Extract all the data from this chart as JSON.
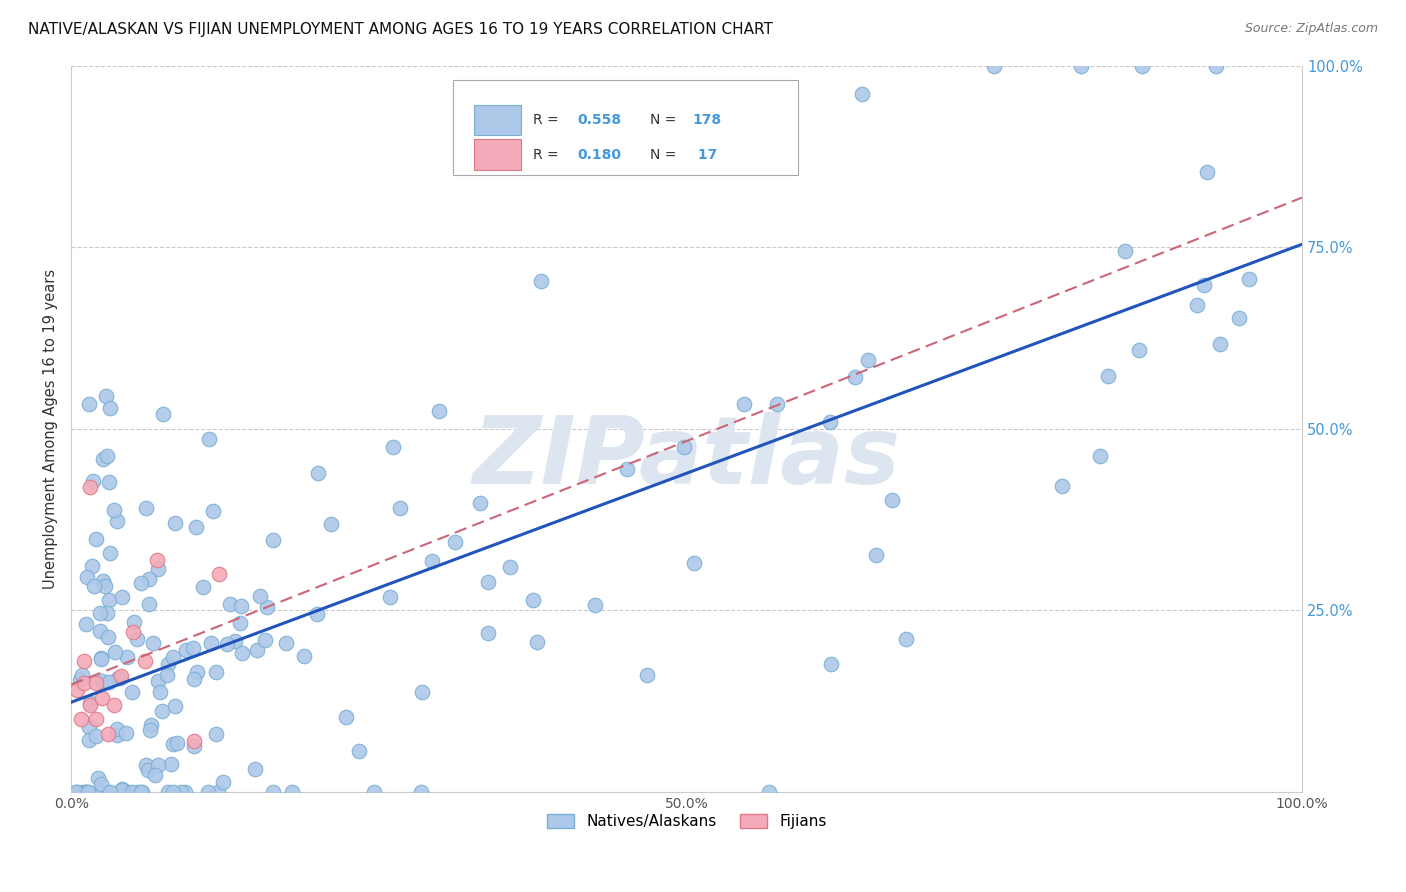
{
  "title": "NATIVE/ALASKAN VS FIJIAN UNEMPLOYMENT AMONG AGES 16 TO 19 YEARS CORRELATION CHART",
  "source": "Source: ZipAtlas.com",
  "ylabel": "Unemployment Among Ages 16 to 19 years",
  "xlim": [
    0.0,
    1.0
  ],
  "ylim": [
    0.0,
    1.0
  ],
  "xticks": [
    0.0,
    0.25,
    0.5,
    0.75,
    1.0
  ],
  "xticklabels": [
    "0.0%",
    "",
    "50.0%",
    "",
    "100.0%"
  ],
  "yticks": [
    0.0,
    0.25,
    0.5,
    0.75,
    1.0
  ],
  "right_yticklabels": [
    "",
    "25.0%",
    "50.0%",
    "75.0%",
    "100.0%"
  ],
  "native_color": "#adc8e8",
  "native_edge": "#7aafd4",
  "fijian_color": "#f4aab8",
  "fijian_edge": "#e07888",
  "native_R": 0.558,
  "native_N": 178,
  "fijian_R": 0.18,
  "fijian_N": 17,
  "legend_label_native": "Natives/Alaskans",
  "legend_label_fijian": "Fijians",
  "background_color": "#ffffff",
  "grid_color": "#cccccc",
  "watermark_color": "#dde6f0",
  "native_line_color": "#2255bb",
  "fijian_line_color": "#cc6677",
  "right_tick_color": "#4499dd"
}
